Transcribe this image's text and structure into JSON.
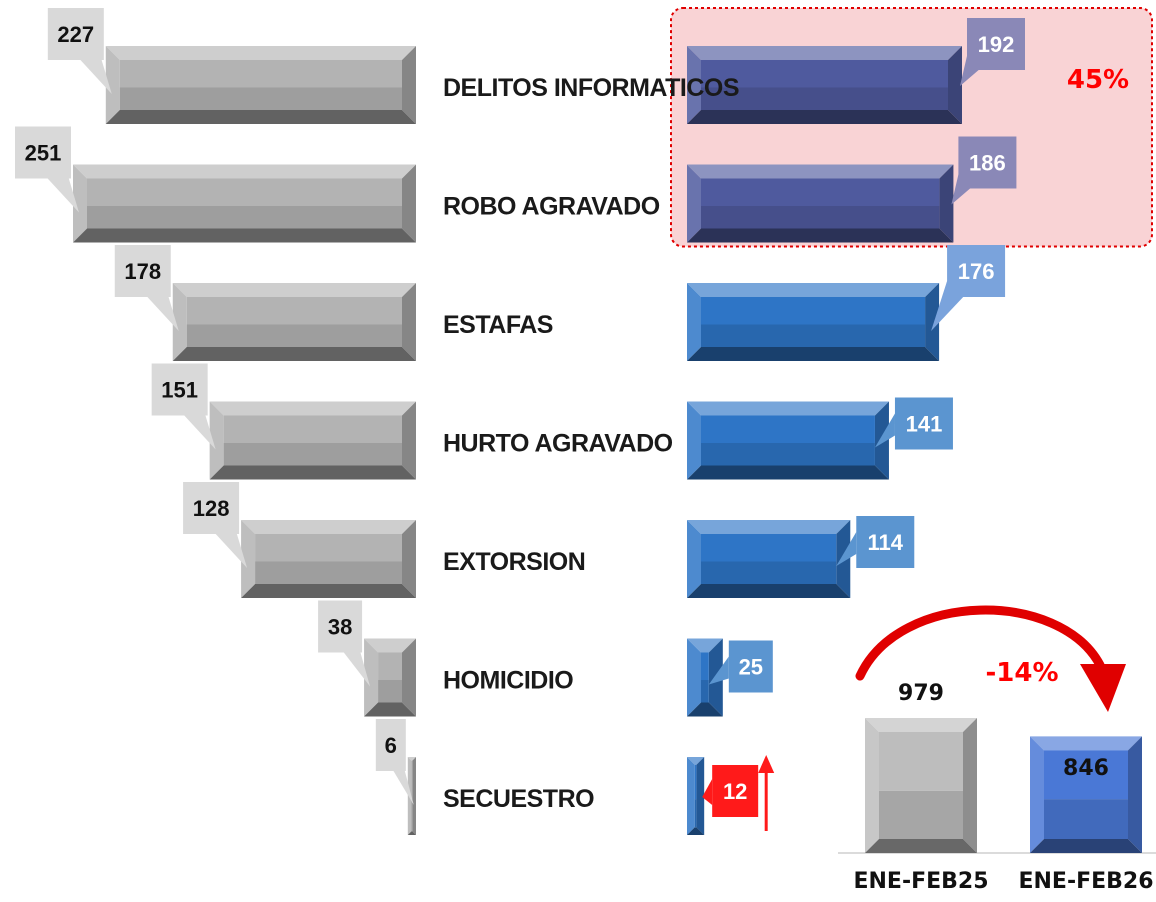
{
  "chart_data": [
    {
      "type": "bar",
      "orientation": "horizontal",
      "categories": [
        "DELITOS INFORMATICOS",
        "ROBO AGRAVADO",
        "ESTAFAS",
        "HURTO AGRAVADO",
        "EXTORSION",
        "HOMICIDIO",
        "SECUESTRO"
      ],
      "series": [
        {
          "values": [
            227,
            251,
            178,
            151,
            128,
            38,
            6
          ],
          "color": "#b3b3b3",
          "direction": "left"
        },
        {
          "values": [
            192,
            186,
            176,
            141,
            114,
            25,
            12
          ],
          "color": "#2e75c6",
          "direction": "right"
        }
      ],
      "highlight": {
        "categories": [
          "DELITOS INFORMATICOS",
          "ROBO AGRAVADO"
        ],
        "label": "45%",
        "color": "#4f5a9e",
        "box_fill": "#f9d3d5",
        "box_border": "#e00000"
      },
      "increase": {
        "category": "SECUESTRO",
        "label_color": "#ff1a1a"
      }
    },
    {
      "type": "bar",
      "orientation": "vertical",
      "categories": [
        "ENE-FEB25",
        "ENE-FEB26"
      ],
      "values": [
        979,
        846
      ],
      "colors": [
        "#bdbdbd",
        "#4a78d6"
      ],
      "change_label": "-14%",
      "change_color": "#e00000"
    }
  ]
}
